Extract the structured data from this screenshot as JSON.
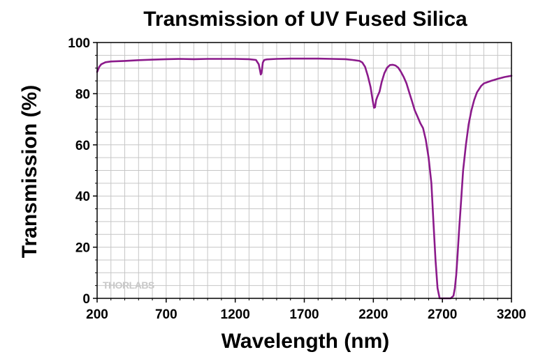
{
  "chart_data": {
    "type": "line",
    "title": "Transmission of UV Fused Silica",
    "xlabel": "Wavelength (nm)",
    "ylabel": "Transmission (%)",
    "xlim": [
      200,
      3200
    ],
    "ylim": [
      0,
      100
    ],
    "x_ticks": [
      200,
      700,
      1200,
      1700,
      2200,
      2700,
      3200
    ],
    "y_ticks": [
      0,
      20,
      40,
      60,
      80,
      100
    ],
    "x_minor_step": 100,
    "y_minor_step": 5,
    "grid": true,
    "line_color": "#8b1a8b",
    "watermark": "THORLABS",
    "series": [
      {
        "x": [
          200,
          215,
          230,
          260,
          300,
          400,
          500,
          600,
          700,
          800,
          900,
          1000,
          1100,
          1200,
          1300,
          1350,
          1370,
          1380,
          1385,
          1390,
          1395,
          1400,
          1410,
          1430,
          1500,
          1600,
          1700,
          1800,
          1900,
          2000,
          2050,
          2100,
          2120,
          2140,
          2160,
          2180,
          2195,
          2205,
          2212,
          2220,
          2230,
          2245,
          2260,
          2280,
          2300,
          2320,
          2340,
          2360,
          2380,
          2400,
          2420,
          2440,
          2460,
          2480,
          2500,
          2520,
          2540,
          2560,
          2580,
          2600,
          2620,
          2635,
          2650,
          2665,
          2680,
          2690,
          2700,
          2705,
          2710,
          2720,
          2740,
          2760,
          2780,
          2790,
          2800,
          2810,
          2820,
          2835,
          2850,
          2870,
          2890,
          2910,
          2930,
          2950,
          2980,
          3000,
          3050,
          3100,
          3150,
          3200
        ],
        "y": [
          88.5,
          90.5,
          91.5,
          92.3,
          92.6,
          92.8,
          93.1,
          93.3,
          93.5,
          93.6,
          93.5,
          93.6,
          93.6,
          93.6,
          93.5,
          93.2,
          91.5,
          89,
          87.5,
          88,
          90,
          92.2,
          93.2,
          93.4,
          93.6,
          93.7,
          93.7,
          93.7,
          93.6,
          93.5,
          93.2,
          92.8,
          92.2,
          90.5,
          87,
          82.5,
          77.5,
          74.5,
          74.7,
          77.5,
          79,
          80.8,
          84.5,
          88,
          90.2,
          91.2,
          91.3,
          91,
          90.2,
          88.5,
          86.5,
          84,
          80.5,
          77,
          73.5,
          71,
          68.5,
          66.5,
          62,
          55,
          45,
          30,
          15,
          4,
          0,
          0,
          0,
          0,
          0,
          0,
          0,
          0,
          1,
          4,
          9,
          17,
          26,
          38,
          50,
          60,
          68,
          73.5,
          77.5,
          80.5,
          83,
          84,
          85,
          85.8,
          86.5,
          87
        ]
      }
    ]
  }
}
